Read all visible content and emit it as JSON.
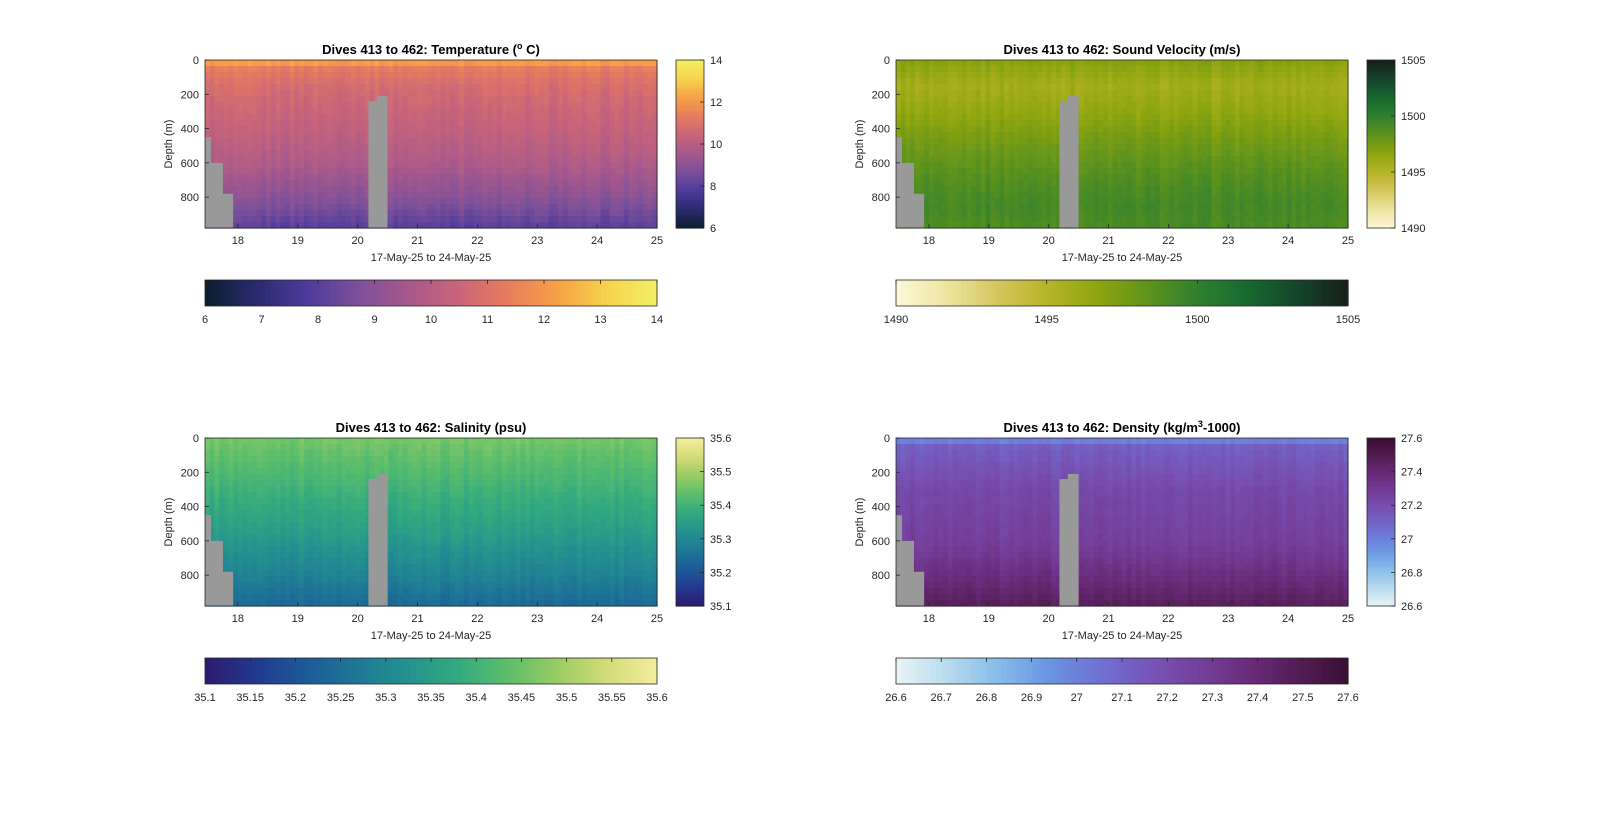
{
  "figure": {
    "x_ticks": [
      "18",
      "19",
      "20",
      "21",
      "22",
      "23",
      "24",
      "25"
    ],
    "x_label": "17-May-25 to 24-May-25",
    "y_ticks": [
      "0",
      "200",
      "400",
      "600",
      "800"
    ],
    "y_label": "Depth (m)",
    "missing_color": "#999999"
  },
  "chart_data": [
    {
      "type": "heatmap",
      "title_prefix": "Dives 413 to 462: Temperature (",
      "title_sup": "o",
      "title_suffix": " C)",
      "xlabel": "17-May-25 to 24-May-25",
      "ylabel": "Depth (m)",
      "x_range": [
        17.45,
        25.0
      ],
      "y_range": [
        0,
        980
      ],
      "y_reversed": true,
      "clim": [
        6,
        14
      ],
      "colormap": [
        "#0b1d2c",
        "#2a2a6e",
        "#4c3a9a",
        "#7a4f9a",
        "#a5588c",
        "#c8647a",
        "#e77b5e",
        "#f6a046",
        "#f6d24c",
        "#f2f066"
      ],
      "colorbar_right_ticks": [
        "6",
        "8",
        "10",
        "12",
        "14"
      ],
      "colorbar_bottom_ticks": [
        "6",
        "7",
        "8",
        "9",
        "10",
        "11",
        "12",
        "13",
        "14"
      ],
      "profile": [
        {
          "depth": 0,
          "value": 12.6
        },
        {
          "depth": 40,
          "value": 11.4
        },
        {
          "depth": 150,
          "value": 10.8
        },
        {
          "depth": 400,
          "value": 10.3
        },
        {
          "depth": 600,
          "value": 9.8
        },
        {
          "depth": 800,
          "value": 9.0
        },
        {
          "depth": 980,
          "value": 8.0
        }
      ],
      "grid": false
    },
    {
      "type": "heatmap",
      "title_prefix": "Dives 413 to 462: Sound Velocity (m/s)",
      "title_sup": "",
      "title_suffix": "",
      "xlabel": "17-May-25 to 24-May-25",
      "ylabel": "Depth (m)",
      "x_range": [
        17.45,
        25.0
      ],
      "y_range": [
        0,
        980
      ],
      "y_reversed": true,
      "clim": [
        1490,
        1505
      ],
      "colormap": [
        "#fdf8d8",
        "#ece6a0",
        "#d6c65e",
        "#b7b428",
        "#8ea50e",
        "#5f931c",
        "#2f8030",
        "#17692f",
        "#14452a",
        "#161f18"
      ],
      "colorbar_right_ticks": [
        "1490",
        "1495",
        "1500",
        "1505"
      ],
      "colorbar_bottom_ticks": [
        "1490",
        "1495",
        "1500",
        "1505"
      ],
      "profile": [
        {
          "depth": 0,
          "value": 1497.0
        },
        {
          "depth": 150,
          "value": 1495.8
        },
        {
          "depth": 300,
          "value": 1496.5
        },
        {
          "depth": 500,
          "value": 1497.8
        },
        {
          "depth": 700,
          "value": 1498.8
        },
        {
          "depth": 850,
          "value": 1499.3
        },
        {
          "depth": 980,
          "value": 1499.0
        }
      ],
      "grid": false
    },
    {
      "type": "heatmap",
      "title_prefix": "Dives 413 to 462: Salinity (psu)",
      "title_sup": "",
      "title_suffix": "",
      "xlabel": "17-May-25 to 24-May-25",
      "ylabel": "Depth (m)",
      "x_range": [
        17.45,
        25.0
      ],
      "y_range": [
        0,
        980
      ],
      "y_reversed": true,
      "clim": [
        35.1,
        35.6
      ],
      "colormap": [
        "#2c1a6e",
        "#23388f",
        "#1c5a96",
        "#1e7796",
        "#23918f",
        "#31a97f",
        "#5bbd6c",
        "#98cc64",
        "#d3db77",
        "#f4ee9e"
      ],
      "colorbar_right_ticks": [
        "35.1",
        "35.2",
        "35.3",
        "35.4",
        "35.5",
        "35.6"
      ],
      "colorbar_bottom_ticks": [
        "35.1",
        "35.15",
        "35.2",
        "35.25",
        "35.3",
        "35.35",
        "35.4",
        "35.45",
        "35.5",
        "35.55",
        "35.6"
      ],
      "profile": [
        {
          "depth": 0,
          "value": 35.46
        },
        {
          "depth": 200,
          "value": 35.42
        },
        {
          "depth": 400,
          "value": 35.38
        },
        {
          "depth": 600,
          "value": 35.34
        },
        {
          "depth": 800,
          "value": 35.29
        },
        {
          "depth": 980,
          "value": 35.24
        }
      ],
      "grid": false
    },
    {
      "type": "heatmap",
      "title_prefix": "Dives 413 to 462: Density (kg/m",
      "title_sup": "3",
      "title_suffix": "-1000)",
      "xlabel": "17-May-25 to 24-May-25",
      "ylabel": "Depth (m)",
      "x_range": [
        17.45,
        25.0
      ],
      "y_range": [
        0,
        980
      ],
      "y_reversed": true,
      "clim": [
        26.6,
        27.6
      ],
      "colormap": [
        "#e9f4f5",
        "#b9dcef",
        "#88bde9",
        "#6b96e2",
        "#6f73d4",
        "#7656b9",
        "#75419c",
        "#6a2b7b",
        "#531d55",
        "#3a0f33"
      ],
      "colorbar_right_ticks": [
        "26.6",
        "26.8",
        "27",
        "27.2",
        "27.4",
        "27.6"
      ],
      "colorbar_bottom_ticks": [
        "26.6",
        "26.7",
        "26.8",
        "26.9",
        "27",
        "27.1",
        "27.2",
        "27.3",
        "27.4",
        "27.5",
        "27.6"
      ],
      "profile": [
        {
          "depth": 0,
          "value": 26.95
        },
        {
          "depth": 50,
          "value": 27.12
        },
        {
          "depth": 300,
          "value": 27.22
        },
        {
          "depth": 600,
          "value": 27.27
        },
        {
          "depth": 800,
          "value": 27.36
        },
        {
          "depth": 980,
          "value": 27.47
        }
      ],
      "grid": false
    }
  ]
}
